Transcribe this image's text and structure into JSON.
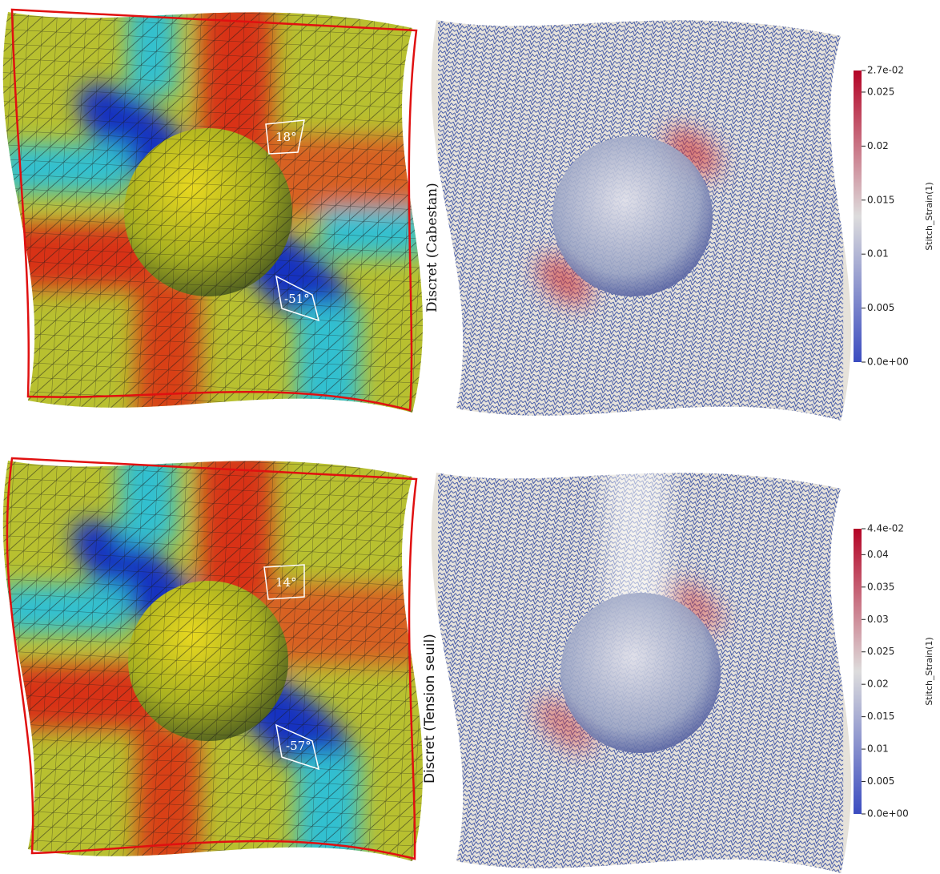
{
  "panels": [
    {
      "angles": [
        "18°",
        "-51°"
      ],
      "label": "Discret (Cabestan)",
      "colorbar": {
        "title": "Stitch_Strain(1)",
        "range": [
          0,
          0.027
        ],
        "ticks": [
          {
            "value": 0.027,
            "label": "2.7e-02"
          },
          0.025,
          0.02,
          0.015,
          0.01,
          0.005,
          {
            "value": 0,
            "label": "0.0e+00"
          }
        ]
      }
    },
    {
      "angles": [
        "14°",
        "-57°"
      ],
      "label": "Discret (Tension seuil)",
      "colorbar": {
        "title": "Stitch_Strain(1)",
        "range": [
          0,
          0.044
        ],
        "ticks": [
          {
            "value": 0.044,
            "label": "4.4e-02"
          },
          0.04,
          0.035,
          0.03,
          0.025,
          0.02,
          0.015,
          0.01,
          0.005,
          {
            "value": 0,
            "label": "0.0e+00"
          }
        ]
      }
    }
  ]
}
